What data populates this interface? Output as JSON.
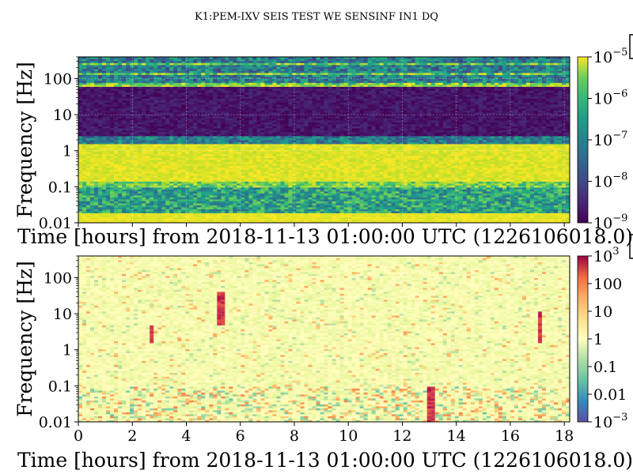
{
  "chart_data": [
    {
      "type": "heatmap",
      "title": "K1:PEM-IXV SEIS TEST WE SENSINF IN1 DQ",
      "xlabel": "Time [hours] from 2018-11-13 01:00:00 UTC (1226106018.0)",
      "ylabel": "Frequency [Hz]",
      "xlim": [
        0,
        18.2
      ],
      "y_scale": "log",
      "ylim": [
        0.01,
        400
      ],
      "y_ticks": [
        0.01,
        0.1,
        1,
        10,
        100
      ],
      "y_tick_labels": [
        "0.01",
        "0.1",
        "1",
        "10",
        "100"
      ],
      "colormap": "viridis",
      "color_scale": "log",
      "color_range": [
        1e-09,
        1e-05
      ],
      "colorbar_ticks": [
        {
          "mantissa": "10",
          "exp": "−5"
        },
        {
          "mantissa": "10",
          "exp": "−6"
        },
        {
          "mantissa": "10",
          "exp": "−7"
        },
        {
          "mantissa": "10",
          "exp": "−8"
        },
        {
          "mantissa": "10",
          "exp": "−9"
        }
      ],
      "grid": true,
      "frequency_bands": [
        {
          "f_low": 60,
          "f_high": 400,
          "level": "mid (1e-8 to 1e-7) with bright horizontal lines"
        },
        {
          "f_low": 1.5,
          "f_high": 60,
          "level": "low (about 1e-9)"
        },
        {
          "f_low": 0.1,
          "f_high": 1.5,
          "level": "high (about 1e-5)"
        },
        {
          "f_low": 0.02,
          "f_high": 0.1,
          "level": "mid (about 1e-8)"
        },
        {
          "f_low": 0.01,
          "f_high": 0.02,
          "level": "high (about 1e-5)"
        }
      ]
    },
    {
      "type": "heatmap",
      "xlabel": "Time [hours] from 2018-11-13 01:00:00 UTC (1226106018.0)",
      "ylabel": "Frequency [Hz]",
      "xlim": [
        0,
        18.2
      ],
      "x_ticks": [
        0,
        2,
        4,
        6,
        8,
        10,
        12,
        14,
        16,
        18
      ],
      "x_tick_labels": [
        "0",
        "2",
        "4",
        "6",
        "8",
        "10",
        "12",
        "14",
        "16",
        "18"
      ],
      "y_scale": "log",
      "ylim": [
        0.01,
        400
      ],
      "y_ticks": [
        0.01,
        0.1,
        1,
        10,
        100
      ],
      "y_tick_labels": [
        "0.01",
        "0.1",
        "1",
        "10",
        "100"
      ],
      "colormap": "Spectral_r",
      "color_scale": "log",
      "color_range": [
        0.001,
        1000
      ],
      "colorbar_ticks": [
        {
          "mantissa": "10",
          "exp": "3"
        },
        {
          "mantissa": "100",
          "exp": ""
        },
        {
          "mantissa": "10",
          "exp": ""
        },
        {
          "mantissa": "1",
          "exp": ""
        },
        {
          "mantissa": "0.1",
          "exp": ""
        },
        {
          "mantissa": "0.01",
          "exp": ""
        },
        {
          "mantissa": "10",
          "exp": "−3"
        }
      ],
      "grid": true,
      "features": [
        {
          "time_h": 2.7,
          "f_low": 1.5,
          "f_high": 5,
          "level": "high"
        },
        {
          "time_h": 5.3,
          "f_low": 5,
          "f_high": 40,
          "level": "high"
        },
        {
          "time_h": 13.1,
          "f_low": 0.01,
          "f_high": 0.1,
          "level": "high"
        },
        {
          "time_h": 17.1,
          "f_low": 1.5,
          "f_high": 12,
          "level": "high"
        }
      ]
    }
  ]
}
